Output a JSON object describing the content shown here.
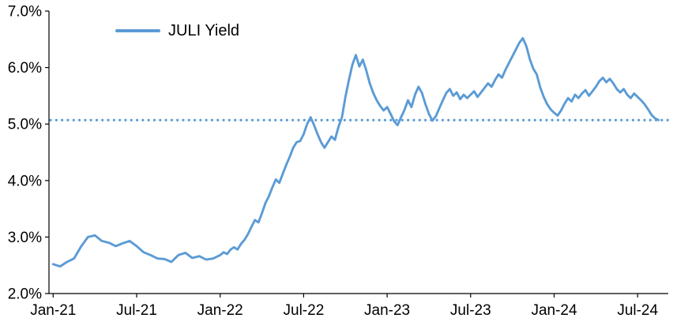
{
  "chart_data": {
    "type": "line",
    "title": "",
    "legend_position": "top-left",
    "grid": false,
    "ylim": [
      2.0,
      7.0
    ],
    "xlim": [
      -0.3,
      44.2
    ],
    "x_unit": "months since Jan-2021",
    "y_ticks": [
      {
        "v": 2.0,
        "label": "2.0%"
      },
      {
        "v": 3.0,
        "label": "3.0%"
      },
      {
        "v": 4.0,
        "label": "4.0%"
      },
      {
        "v": 5.0,
        "label": "5.0%"
      },
      {
        "v": 6.0,
        "label": "6.0%"
      },
      {
        "v": 7.0,
        "label": "7.0%"
      }
    ],
    "x_ticks": [
      {
        "t": 0,
        "label": "Jan-21"
      },
      {
        "t": 6,
        "label": "Jul-21"
      },
      {
        "t": 12,
        "label": "Jan-22"
      },
      {
        "t": 18,
        "label": "Jul-22"
      },
      {
        "t": 24,
        "label": "Jan-23"
      },
      {
        "t": 30,
        "label": "Jul-23"
      },
      {
        "t": 36,
        "label": "Jan-24"
      },
      {
        "t": 42,
        "label": "Jul-24"
      }
    ],
    "reference_line": {
      "value": 5.07,
      "style": "dotted",
      "color": "#5B9BD5"
    },
    "series": [
      {
        "name": "JULI Yield",
        "color": "#5B9BD5",
        "points": [
          [
            0,
            2.52
          ],
          [
            0.5,
            2.48
          ],
          [
            1,
            2.56
          ],
          [
            1.5,
            2.62
          ],
          [
            2,
            2.83
          ],
          [
            2.5,
            3.0
          ],
          [
            3,
            3.03
          ],
          [
            3.5,
            2.93
          ],
          [
            4,
            2.9
          ],
          [
            4.5,
            2.84
          ],
          [
            5,
            2.89
          ],
          [
            5.5,
            2.93
          ],
          [
            6,
            2.84
          ],
          [
            6.5,
            2.73
          ],
          [
            7,
            2.68
          ],
          [
            7.5,
            2.62
          ],
          [
            8,
            2.61
          ],
          [
            8.5,
            2.56
          ],
          [
            9,
            2.68
          ],
          [
            9.5,
            2.72
          ],
          [
            10,
            2.63
          ],
          [
            10.5,
            2.66
          ],
          [
            11,
            2.6
          ],
          [
            11.5,
            2.62
          ],
          [
            12,
            2.68
          ],
          [
            12.25,
            2.73
          ],
          [
            12.5,
            2.7
          ],
          [
            12.75,
            2.78
          ],
          [
            13,
            2.82
          ],
          [
            13.25,
            2.78
          ],
          [
            13.5,
            2.88
          ],
          [
            13.75,
            2.95
          ],
          [
            14,
            3.05
          ],
          [
            14.25,
            3.18
          ],
          [
            14.5,
            3.3
          ],
          [
            14.75,
            3.26
          ],
          [
            15,
            3.42
          ],
          [
            15.25,
            3.6
          ],
          [
            15.5,
            3.72
          ],
          [
            15.75,
            3.88
          ],
          [
            16,
            4.02
          ],
          [
            16.25,
            3.96
          ],
          [
            16.5,
            4.12
          ],
          [
            16.75,
            4.28
          ],
          [
            17,
            4.42
          ],
          [
            17.25,
            4.58
          ],
          [
            17.5,
            4.68
          ],
          [
            17.75,
            4.7
          ],
          [
            18,
            4.82
          ],
          [
            18.25,
            5.0
          ],
          [
            18.5,
            5.12
          ],
          [
            18.75,
            4.98
          ],
          [
            19,
            4.82
          ],
          [
            19.25,
            4.68
          ],
          [
            19.5,
            4.58
          ],
          [
            19.75,
            4.68
          ],
          [
            20,
            4.78
          ],
          [
            20.25,
            4.72
          ],
          [
            20.5,
            4.95
          ],
          [
            20.75,
            5.12
          ],
          [
            21,
            5.48
          ],
          [
            21.25,
            5.78
          ],
          [
            21.5,
            6.05
          ],
          [
            21.75,
            6.22
          ],
          [
            22,
            6.02
          ],
          [
            22.25,
            6.14
          ],
          [
            22.5,
            5.95
          ],
          [
            22.75,
            5.72
          ],
          [
            23,
            5.55
          ],
          [
            23.25,
            5.42
          ],
          [
            23.5,
            5.32
          ],
          [
            23.75,
            5.24
          ],
          [
            24,
            5.3
          ],
          [
            24.25,
            5.18
          ],
          [
            24.5,
            5.05
          ],
          [
            24.75,
            4.98
          ],
          [
            25,
            5.12
          ],
          [
            25.25,
            5.25
          ],
          [
            25.5,
            5.42
          ],
          [
            25.75,
            5.3
          ],
          [
            26,
            5.52
          ],
          [
            26.25,
            5.66
          ],
          [
            26.5,
            5.55
          ],
          [
            26.75,
            5.35
          ],
          [
            27,
            5.18
          ],
          [
            27.25,
            5.06
          ],
          [
            27.5,
            5.14
          ],
          [
            27.75,
            5.28
          ],
          [
            28,
            5.42
          ],
          [
            28.25,
            5.55
          ],
          [
            28.5,
            5.62
          ],
          [
            28.75,
            5.5
          ],
          [
            29,
            5.56
          ],
          [
            29.25,
            5.44
          ],
          [
            29.5,
            5.52
          ],
          [
            29.75,
            5.46
          ],
          [
            30,
            5.52
          ],
          [
            30.25,
            5.58
          ],
          [
            30.5,
            5.48
          ],
          [
            30.75,
            5.56
          ],
          [
            31,
            5.64
          ],
          [
            31.25,
            5.72
          ],
          [
            31.5,
            5.66
          ],
          [
            31.75,
            5.78
          ],
          [
            32,
            5.88
          ],
          [
            32.25,
            5.82
          ],
          [
            32.5,
            5.96
          ],
          [
            32.75,
            6.08
          ],
          [
            33,
            6.2
          ],
          [
            33.25,
            6.32
          ],
          [
            33.5,
            6.44
          ],
          [
            33.75,
            6.52
          ],
          [
            34,
            6.38
          ],
          [
            34.25,
            6.15
          ],
          [
            34.5,
            5.98
          ],
          [
            34.75,
            5.88
          ],
          [
            35,
            5.65
          ],
          [
            35.25,
            5.48
          ],
          [
            35.5,
            5.35
          ],
          [
            35.75,
            5.26
          ],
          [
            36,
            5.2
          ],
          [
            36.25,
            5.15
          ],
          [
            36.5,
            5.24
          ],
          [
            36.75,
            5.36
          ],
          [
            37,
            5.46
          ],
          [
            37.25,
            5.4
          ],
          [
            37.5,
            5.52
          ],
          [
            37.75,
            5.46
          ],
          [
            38,
            5.54
          ],
          [
            38.25,
            5.6
          ],
          [
            38.5,
            5.5
          ],
          [
            38.75,
            5.58
          ],
          [
            39,
            5.66
          ],
          [
            39.25,
            5.76
          ],
          [
            39.5,
            5.82
          ],
          [
            39.75,
            5.74
          ],
          [
            40,
            5.8
          ],
          [
            40.25,
            5.72
          ],
          [
            40.5,
            5.62
          ],
          [
            40.75,
            5.56
          ],
          [
            41,
            5.62
          ],
          [
            41.25,
            5.52
          ],
          [
            41.5,
            5.46
          ],
          [
            41.75,
            5.54
          ],
          [
            42,
            5.48
          ],
          [
            42.25,
            5.42
          ],
          [
            42.5,
            5.35
          ],
          [
            42.75,
            5.26
          ],
          [
            43,
            5.16
          ],
          [
            43.25,
            5.1
          ],
          [
            43.5,
            5.07
          ]
        ]
      }
    ]
  }
}
